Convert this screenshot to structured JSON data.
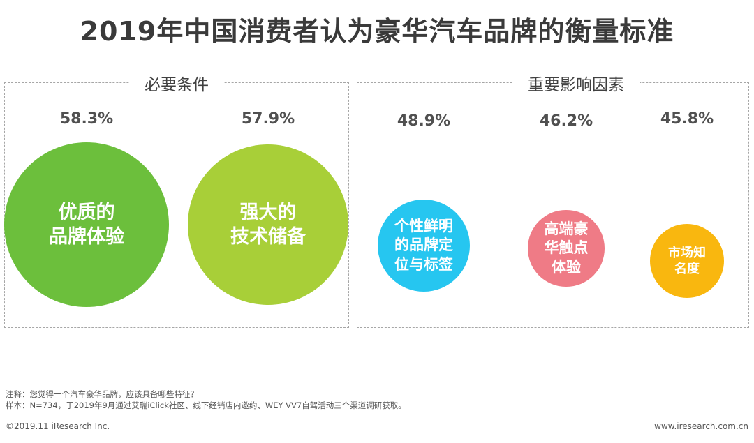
{
  "title": "2019年中国消费者认为豪华汽车品牌的衡量标准",
  "groups": [
    {
      "label": "必要条件"
    },
    {
      "label": "重要影响因素"
    }
  ],
  "chart_data": {
    "type": "bubble",
    "title": "2019年中国消费者认为豪华汽车品牌的衡量标准",
    "unit": "%",
    "series": [
      {
        "group": "必要条件",
        "label": "优质的\n品牌体验",
        "value": 58.3,
        "display": "58.3%",
        "color": "#6cbf3c"
      },
      {
        "group": "必要条件",
        "label": "强大的\n技术储备",
        "value": 57.9,
        "display": "57.9%",
        "color": "#a8cf38"
      },
      {
        "group": "重要影响因素",
        "label": "个性鲜明\n的品牌定\n位与标签",
        "value": 48.9,
        "display": "48.9%",
        "color": "#26c6f0"
      },
      {
        "group": "重要影响因素",
        "label": "高端豪\n华触点\n体验",
        "value": 46.2,
        "display": "46.2%",
        "color": "#ef7b86"
      },
      {
        "group": "重要影响因素",
        "label": "市场知\n名度",
        "value": 45.8,
        "display": "45.8%",
        "color": "#f9b70f"
      }
    ]
  },
  "notes": {
    "line1": "注释：您觉得一个汽车豪华品牌，应该具备哪些特征？",
    "line2": "样本：N=734，于2019年9月通过艾瑞iClick社区、线下经销店内邀约、WEY VV7自驾活动三个渠道调研获取。"
  },
  "footer": {
    "copyright": "©2019.11 iResearch Inc.",
    "website": "www.iresearch.com.cn"
  }
}
